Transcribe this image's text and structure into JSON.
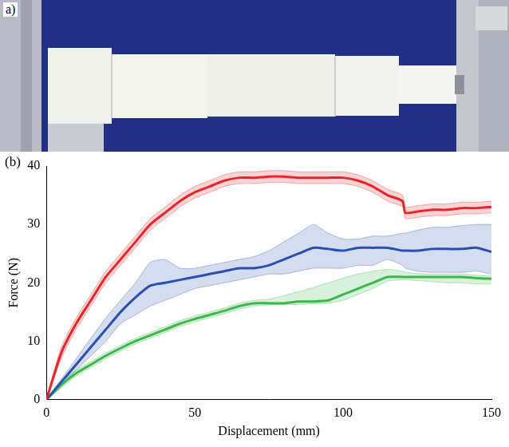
{
  "photo": {
    "label": "a)"
  },
  "chart_data": {
    "type": "line",
    "label": "(b)",
    "x_label": "Displacement (mm)",
    "y_label": "Force (N)",
    "xlim": [
      0,
      150
    ],
    "xticks": [
      0,
      50,
      100,
      150
    ],
    "ylim": [
      0,
      40
    ],
    "yticks": [
      0,
      10,
      20,
      30,
      40
    ],
    "grid": false,
    "marker": "none",
    "x": [
      0,
      5,
      10,
      15,
      20,
      25,
      30,
      35,
      40,
      45,
      50,
      55,
      60,
      65,
      70,
      75,
      80,
      85,
      90,
      95,
      100,
      105,
      110,
      115,
      120,
      121,
      125,
      130,
      135,
      140,
      145,
      150
    ],
    "series": [
      {
        "color": "#e8262a",
        "values": [
          0,
          8,
          13,
          17,
          21,
          24,
          27,
          30,
          32,
          34,
          35.5,
          36.5,
          37.5,
          38,
          38,
          38.2,
          38.2,
          38,
          38,
          38,
          38,
          37.5,
          36.5,
          35,
          34,
          32,
          32.2,
          32.5,
          32.5,
          32.8,
          32.8,
          33
        ],
        "upper": [
          0,
          9,
          14,
          18,
          22,
          25,
          28,
          31,
          33,
          35,
          36.5,
          37.5,
          38.5,
          39,
          39,
          39.2,
          39.2,
          39,
          39,
          39,
          39,
          38.5,
          37.5,
          36,
          35,
          33,
          33.2,
          33.5,
          33.5,
          33.8,
          33.8,
          34
        ],
        "lower": [
          0,
          7,
          12,
          16,
          20,
          23,
          26,
          29,
          31,
          33,
          34.5,
          35.5,
          36.5,
          37,
          37,
          37.2,
          37.2,
          37,
          37,
          37,
          37,
          36.5,
          35.5,
          34,
          33,
          31,
          31.2,
          31.5,
          31.5,
          31.8,
          31.8,
          32
        ]
      },
      {
        "color": "#2a4fb0",
        "values": [
          0,
          3,
          6,
          9,
          12,
          15,
          17.5,
          19.5,
          20,
          20.5,
          21,
          21.5,
          22,
          22.5,
          22.5,
          23,
          24,
          25,
          26,
          25.8,
          25.5,
          26,
          26,
          26,
          25.5,
          25.5,
          25.5,
          25.8,
          25.8,
          25.8,
          26,
          25.3
        ],
        "upper": [
          0,
          3.5,
          7,
          10.5,
          14,
          17,
          20,
          23.5,
          24,
          22.5,
          22.5,
          23,
          23.5,
          24,
          24.5,
          25.5,
          27,
          28.5,
          30,
          28.5,
          27.5,
          27.5,
          28,
          28,
          28.5,
          28.5,
          29,
          29.5,
          29.5,
          29.8,
          30,
          30
        ],
        "lower": [
          0,
          2.5,
          5,
          7.5,
          10,
          13,
          14.5,
          16,
          17,
          18,
          19,
          19.5,
          20,
          20.5,
          21,
          21.5,
          21.5,
          22,
          22.5,
          22.5,
          22.5,
          23,
          23,
          24,
          23,
          22.5,
          22,
          21.8,
          21.8,
          21.8,
          22,
          21.5
        ]
      },
      {
        "color": "#3cb84a",
        "values": [
          0,
          2.5,
          4.5,
          6,
          7.5,
          8.8,
          10,
          11,
          12,
          13,
          13.8,
          14.5,
          15.2,
          16,
          16.5,
          16.5,
          16.5,
          16.8,
          16.8,
          17,
          18,
          19,
          20,
          21,
          21,
          21,
          21,
          21,
          21,
          21,
          20.8,
          20.7
        ],
        "upper": [
          0,
          3,
          5,
          6.5,
          8,
          9.3,
          10.5,
          11.5,
          12.5,
          13.5,
          14.3,
          15,
          15.7,
          16.5,
          17,
          17.2,
          17.8,
          18.5,
          19.2,
          20,
          20.8,
          21.5,
          22,
          22.3,
          22,
          21.8,
          21.6,
          21.5,
          21.5,
          21.5,
          21.3,
          21.2
        ],
        "lower": [
          0,
          2,
          4,
          5.5,
          7,
          8.3,
          9.5,
          10.5,
          11.5,
          12.5,
          13.3,
          14,
          14.7,
          15.5,
          16,
          16.2,
          16.3,
          16.3,
          16.4,
          16.5,
          17,
          18,
          19,
          20.3,
          20.5,
          20.5,
          20.4,
          20.2,
          20,
          20,
          19.8,
          19.8
        ]
      }
    ]
  }
}
